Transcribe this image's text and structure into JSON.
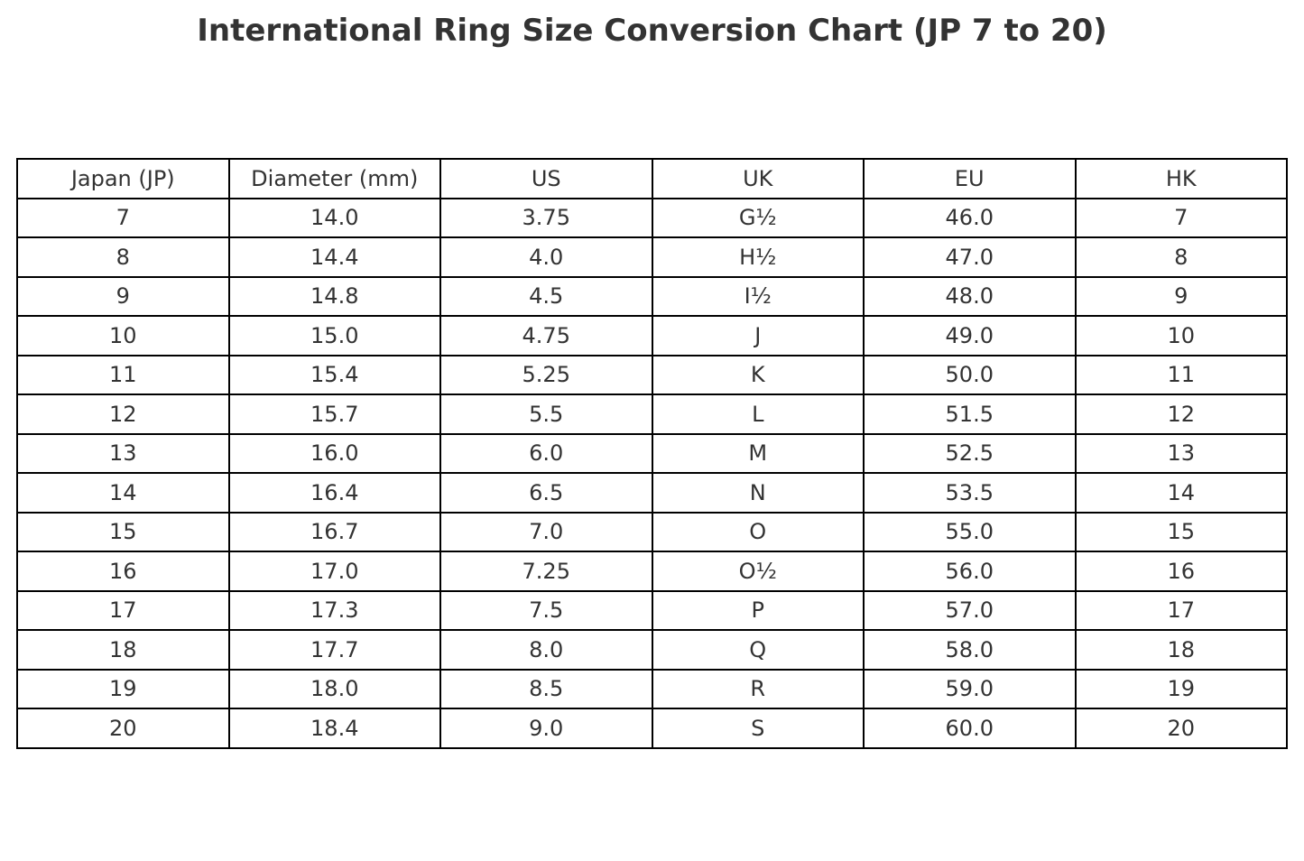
{
  "chart_data": {
    "type": "table",
    "title": "International Ring Size Conversion Chart (JP 7 to 20)",
    "columns": [
      "Japan (JP)",
      "Diameter (mm)",
      "US",
      "UK",
      "EU",
      "HK"
    ],
    "rows": [
      [
        "7",
        "14.0",
        "3.75",
        "G½",
        "46.0",
        "7"
      ],
      [
        "8",
        "14.4",
        "4.0",
        "H½",
        "47.0",
        "8"
      ],
      [
        "9",
        "14.8",
        "4.5",
        "I½",
        "48.0",
        "9"
      ],
      [
        "10",
        "15.0",
        "4.75",
        "J",
        "49.0",
        "10"
      ],
      [
        "11",
        "15.4",
        "5.25",
        "K",
        "50.0",
        "11"
      ],
      [
        "12",
        "15.7",
        "5.5",
        "L",
        "51.5",
        "12"
      ],
      [
        "13",
        "16.0",
        "6.0",
        "M",
        "52.5",
        "13"
      ],
      [
        "14",
        "16.4",
        "6.5",
        "N",
        "53.5",
        "14"
      ],
      [
        "15",
        "16.7",
        "7.0",
        "O",
        "55.0",
        "15"
      ],
      [
        "16",
        "17.0",
        "7.25",
        "O½",
        "56.0",
        "16"
      ],
      [
        "17",
        "17.3",
        "7.5",
        "P",
        "57.0",
        "17"
      ],
      [
        "18",
        "17.7",
        "8.0",
        "Q",
        "58.0",
        "18"
      ],
      [
        "19",
        "18.0",
        "8.5",
        "R",
        "59.0",
        "19"
      ],
      [
        "20",
        "18.4",
        "9.0",
        "S",
        "60.0",
        "20"
      ]
    ],
    "colors": {
      "text": "#333333",
      "border": "#000000",
      "background": "#ffffff"
    }
  }
}
